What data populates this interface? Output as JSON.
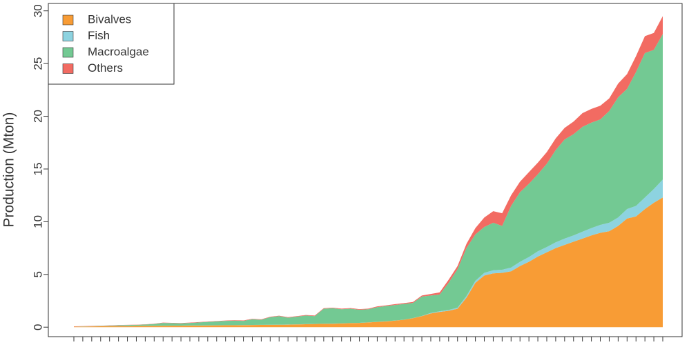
{
  "chart_data": {
    "type": "stacked_area",
    "y_label": "Production (Mton)",
    "categories": [
      null,
      null,
      null,
      null,
      null,
      null,
      null,
      null,
      null,
      null,
      null,
      null,
      null,
      null,
      null,
      null,
      null,
      null,
      null,
      null,
      null,
      null,
      null,
      null,
      null,
      null,
      null,
      null,
      null,
      null,
      null,
      null,
      null,
      null,
      null,
      null,
      null,
      null,
      null,
      null,
      null,
      null,
      null,
      null,
      null,
      null,
      null,
      null,
      null,
      null,
      null,
      null,
      null,
      null,
      null,
      null,
      null,
      null,
      null,
      null,
      null,
      null,
      null,
      null,
      null,
      null,
      null
    ],
    "series": [
      {
        "name": "Bivalves",
        "color": "#f89c35",
        "values": [
          0.05,
          0.06,
          0.07,
          0.08,
          0.09,
          0.1,
          0.1,
          0.11,
          0.12,
          0.12,
          0.13,
          0.14,
          0.14,
          0.15,
          0.15,
          0.16,
          0.17,
          0.18,
          0.18,
          0.19,
          0.2,
          0.21,
          0.22,
          0.23,
          0.24,
          0.26,
          0.28,
          0.3,
          0.32,
          0.33,
          0.35,
          0.38,
          0.4,
          0.45,
          0.5,
          0.55,
          0.62,
          0.7,
          0.85,
          1.05,
          1.3,
          1.45,
          1.55,
          1.75,
          2.8,
          4.2,
          4.9,
          5.1,
          5.15,
          5.3,
          5.8,
          6.2,
          6.7,
          7.1,
          7.5,
          7.8,
          8.1,
          8.4,
          8.7,
          8.95,
          9.1,
          9.6,
          10.3,
          10.5,
          11.2,
          11.8,
          12.3
        ]
      },
      {
        "name": "Fish",
        "color": "#8dd3e0",
        "values": [
          0.01,
          0.01,
          0.01,
          0.01,
          0.01,
          0.01,
          0.01,
          0.01,
          0.01,
          0.01,
          0.01,
          0.01,
          0.01,
          0.01,
          0.01,
          0.01,
          0.01,
          0.01,
          0.01,
          0.01,
          0.01,
          0.01,
          0.01,
          0.01,
          0.01,
          0.01,
          0.01,
          0.01,
          0.01,
          0.01,
          0.01,
          0.01,
          0.01,
          0.01,
          0.01,
          0.01,
          0.01,
          0.01,
          0.01,
          0.01,
          0.05,
          0.06,
          0.08,
          0.1,
          0.15,
          0.2,
          0.25,
          0.3,
          0.3,
          0.35,
          0.4,
          0.45,
          0.5,
          0.5,
          0.55,
          0.6,
          0.6,
          0.65,
          0.7,
          0.75,
          0.8,
          0.8,
          0.9,
          1.0,
          1.1,
          1.3,
          1.7
        ]
      },
      {
        "name": "Macroalgae",
        "color": "#73c993",
        "values": [
          0,
          0.01,
          0.02,
          0.03,
          0.05,
          0.07,
          0.09,
          0.1,
          0.12,
          0.17,
          0.26,
          0.23,
          0.21,
          0.24,
          0.29,
          0.33,
          0.37,
          0.41,
          0.43,
          0.4,
          0.54,
          0.48,
          0.72,
          0.81,
          0.65,
          0.73,
          0.81,
          0.74,
          1.42,
          1.46,
          1.34,
          1.36,
          1.24,
          1.24,
          1.39,
          1.44,
          1.47,
          1.49,
          1.44,
          1.84,
          1.65,
          1.59,
          2.57,
          3.65,
          4.55,
          4.4,
          4.35,
          4.5,
          4.15,
          5.85,
          6.6,
          6.95,
          7.3,
          7.9,
          8.75,
          9.4,
          9.6,
          9.95,
          10.0,
          10.0,
          10.6,
          11.4,
          11.4,
          12.7,
          13.7,
          13.2,
          13.8
        ]
      },
      {
        "name": "Others",
        "color": "#f26b62",
        "values": [
          0.02,
          0.02,
          0.02,
          0.02,
          0.02,
          0.02,
          0.02,
          0.02,
          0.02,
          0.03,
          0.03,
          0.03,
          0.03,
          0.03,
          0.03,
          0.03,
          0.03,
          0.03,
          0.04,
          0.04,
          0.04,
          0.04,
          0.04,
          0.04,
          0.05,
          0.05,
          0.05,
          0.05,
          0.05,
          0.05,
          0.06,
          0.06,
          0.06,
          0.06,
          0.07,
          0.07,
          0.08,
          0.08,
          0.09,
          0.1,
          0.15,
          0.2,
          0.3,
          0.3,
          0.4,
          0.6,
          0.9,
          1.1,
          1.2,
          1.0,
          1.0,
          1.1,
          1.1,
          1.1,
          1.1,
          1.1,
          1.2,
          1.3,
          1.3,
          1.3,
          1.2,
          1.3,
          1.4,
          1.5,
          1.6,
          1.6,
          1.7
        ]
      }
    ],
    "ylim": [
      -0.9,
      30.7
    ],
    "yticks": [
      0,
      5,
      10,
      15,
      20,
      25,
      30
    ],
    "legend": "top-left",
    "grid": false
  }
}
